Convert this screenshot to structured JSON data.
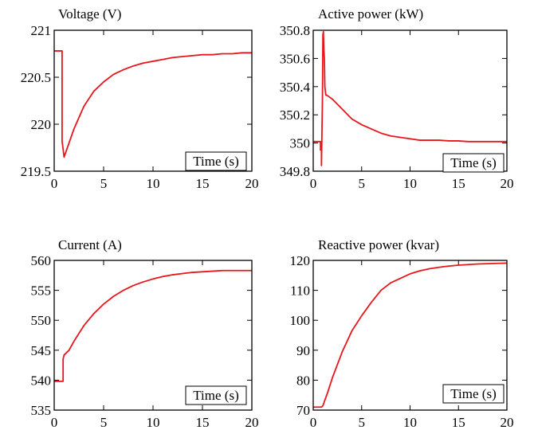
{
  "chart_data": [
    {
      "type": "line",
      "title": "Voltage (V)",
      "xlabel": "Time (s)",
      "ylabel": "",
      "xlim": [
        0,
        20
      ],
      "ylim": [
        219.5,
        221
      ],
      "xticks": [
        0,
        5,
        10,
        15,
        20
      ],
      "yticks": [
        219.5,
        220,
        220.5,
        221
      ],
      "ytick_labels": [
        "219.5",
        "220",
        "220.5",
        "221"
      ],
      "legend": "none",
      "grid": false,
      "color": "#e8161b",
      "series": [
        {
          "x": [
            0,
            0.8,
            0.8,
            1.0,
            1.5,
            2,
            3,
            4,
            5,
            6,
            7,
            8,
            9,
            10,
            11,
            12,
            13,
            14,
            15,
            16,
            17,
            18,
            19,
            20
          ],
          "values": [
            220.78,
            220.78,
            219.82,
            219.65,
            219.8,
            219.95,
            220.19,
            220.35,
            220.45,
            220.53,
            220.58,
            220.62,
            220.65,
            220.67,
            220.69,
            220.71,
            220.72,
            220.73,
            220.74,
            220.74,
            220.75,
            220.75,
            220.76,
            220.76
          ]
        }
      ]
    },
    {
      "type": "line",
      "title": "Active power (kW)",
      "xlabel": "Time (s)",
      "ylabel": "",
      "xlim": [
        0,
        20
      ],
      "ylim": [
        349.8,
        350.8
      ],
      "xticks": [
        0,
        5,
        10,
        15,
        20
      ],
      "yticks": [
        349.8,
        350,
        350.2,
        350.4,
        350.6,
        350.8
      ],
      "ytick_labels": [
        "349.8",
        "350",
        "350.2",
        "350.4",
        "350.6",
        "350.8"
      ],
      "legend": "none",
      "grid": false,
      "color": "#e8161b",
      "series": [
        {
          "x": [
            0,
            0.75,
            0.75,
            0.85,
            0.85,
            0.95,
            1.0,
            1.05,
            1.1,
            1.15,
            1.2,
            1.3,
            1.4,
            1.6,
            2,
            3,
            4,
            5,
            6,
            7,
            8,
            9,
            10,
            11,
            12,
            13,
            14,
            15,
            16,
            17,
            18,
            19,
            20
          ],
          "values": [
            350.01,
            350.01,
            349.95,
            349.95,
            349.84,
            350.3,
            350.77,
            350.79,
            350.66,
            350.6,
            350.4,
            350.34,
            350.34,
            350.33,
            350.31,
            350.24,
            350.17,
            350.13,
            350.1,
            350.07,
            350.05,
            350.04,
            350.03,
            350.02,
            350.02,
            350.02,
            350.015,
            350.015,
            350.01,
            350.01,
            350.01,
            350.01,
            350.01
          ]
        }
      ]
    },
    {
      "type": "line",
      "title": "Current (A)",
      "xlabel": "Time (s)",
      "ylabel": "",
      "xlim": [
        0,
        20
      ],
      "ylim": [
        535,
        560
      ],
      "xticks": [
        0,
        5,
        10,
        15,
        20
      ],
      "yticks": [
        535,
        540,
        545,
        550,
        555,
        560
      ],
      "ytick_labels": [
        "535",
        "540",
        "545",
        "550",
        "555",
        "560"
      ],
      "legend": "none",
      "grid": false,
      "color": "#e8161b",
      "series": [
        {
          "x": [
            0,
            0.9,
            0.9,
            1.0,
            1.5,
            2,
            3,
            4,
            5,
            6,
            7,
            8,
            9,
            10,
            11,
            12,
            13,
            14,
            15,
            16,
            17,
            18,
            19,
            20
          ],
          "values": [
            539.8,
            539.8,
            543.5,
            544.2,
            545.0,
            546.5,
            549.1,
            551.1,
            552.7,
            554.0,
            555.0,
            555.8,
            556.4,
            556.9,
            557.3,
            557.6,
            557.8,
            558.0,
            558.1,
            558.2,
            558.3,
            558.3,
            558.3,
            558.3
          ]
        }
      ]
    },
    {
      "type": "line",
      "title": "Reactive power (kvar)",
      "xlabel": "Time (s)",
      "ylabel": "",
      "xlim": [
        0,
        20
      ],
      "ylim": [
        70,
        120
      ],
      "xticks": [
        0,
        5,
        10,
        15,
        20
      ],
      "yticks": [
        70,
        80,
        90,
        100,
        110,
        120
      ],
      "ytick_labels": [
        "70",
        "80",
        "90",
        "100",
        "110",
        "120"
      ],
      "legend": "none",
      "grid": false,
      "color": "#e8161b",
      "series": [
        {
          "x": [
            0,
            0.85,
            1.0,
            1.5,
            2,
            3,
            4,
            5,
            6,
            7,
            8,
            9,
            10,
            11,
            12,
            13,
            14,
            15,
            16,
            17,
            18,
            19,
            20
          ],
          "values": [
            71,
            71,
            71.5,
            76,
            81,
            89.5,
            96.5,
            101.5,
            106,
            110,
            112.5,
            114,
            115.5,
            116.5,
            117.2,
            117.7,
            118.1,
            118.4,
            118.6,
            118.8,
            118.9,
            119,
            119.1
          ]
        }
      ]
    }
  ]
}
